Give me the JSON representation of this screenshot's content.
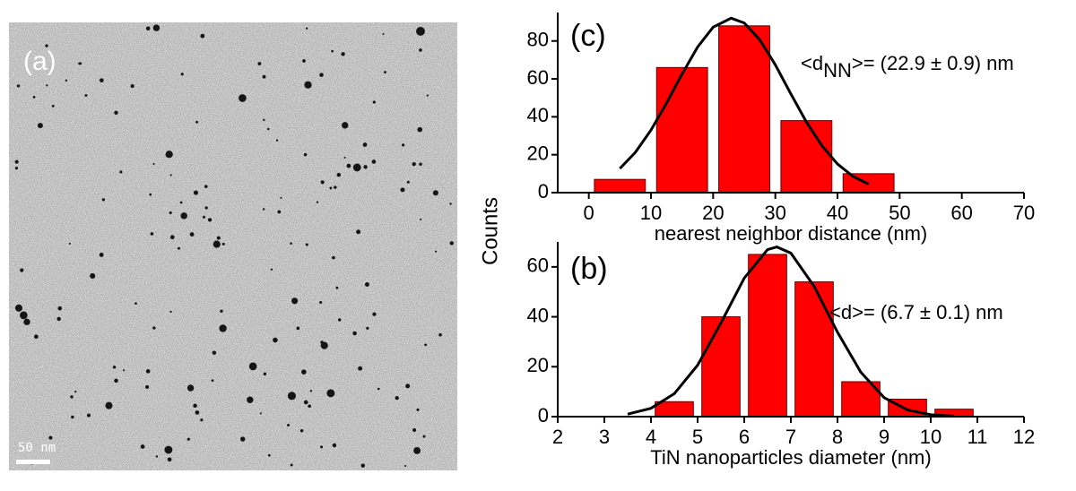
{
  "image": {
    "label": "(a)",
    "scale_bar": "50 nm"
  },
  "y_axis_label": "Counts",
  "chart_data": [
    {
      "type": "histogram",
      "panel": "(c)",
      "xlabel": "nearest neighbor distance (nm)",
      "annotation": {
        "text": "<d",
        "sub": "NN",
        "rest": ">= (22.9 ± 0.9) nm"
      },
      "bins": [
        0,
        10,
        20,
        30,
        40,
        50
      ],
      "values": [
        7,
        66,
        88,
        38,
        10
      ],
      "color": "#ff0000",
      "xlim": [
        -5,
        70
      ],
      "ylim": [
        0,
        95
      ],
      "xticks": [
        0,
        10,
        20,
        30,
        40,
        50,
        60,
        70
      ],
      "yticks": [
        0,
        20,
        40,
        60,
        80
      ],
      "fit": {
        "color": "#000000",
        "x": [
          5,
          7.5,
          10,
          12.5,
          15,
          17.5,
          20,
          22.9,
          25,
          27.5,
          30,
          32.5,
          35,
          37.5,
          40,
          42.5,
          45
        ],
        "values": [
          12.7,
          21.3,
          33.0,
          47.2,
          62.6,
          76.8,
          87.3,
          92,
          89.5,
          80.7,
          67.4,
          52.1,
          37.3,
          24.7,
          15.1,
          8.6,
          4.5
        ]
      }
    },
    {
      "type": "histogram",
      "panel": "(b)",
      "xlabel": "TiN nanoparticles diameter (nm)",
      "annotation": {
        "text": "<d",
        "sub": "",
        "rest": ">= (6.7 ± 0.1) nm"
      },
      "bins": [
        4,
        5,
        6,
        7,
        8,
        9,
        10,
        11
      ],
      "values": [
        6,
        40,
        65,
        54,
        14,
        7,
        3
      ],
      "color": "#ff0000",
      "xlim": [
        2,
        12
      ],
      "ylim": [
        0,
        70
      ],
      "xticks": [
        2,
        3,
        4,
        5,
        6,
        7,
        8,
        9,
        10,
        11,
        12
      ],
      "yticks": [
        0,
        20,
        40,
        60
      ],
      "fit": {
        "color": "#000000",
        "x": [
          3.5,
          4,
          4.5,
          5,
          5.5,
          6,
          6.5,
          6.7,
          7,
          7.5,
          8,
          8.5,
          9,
          9.5,
          10,
          10.5
        ],
        "values": [
          0.99,
          3.35,
          9.2,
          20.6,
          37.5,
          55.5,
          66.9,
          68,
          65.5,
          52.2,
          33.8,
          17.8,
          7.6,
          2.7,
          0.76,
          0.17
        ]
      }
    }
  ]
}
